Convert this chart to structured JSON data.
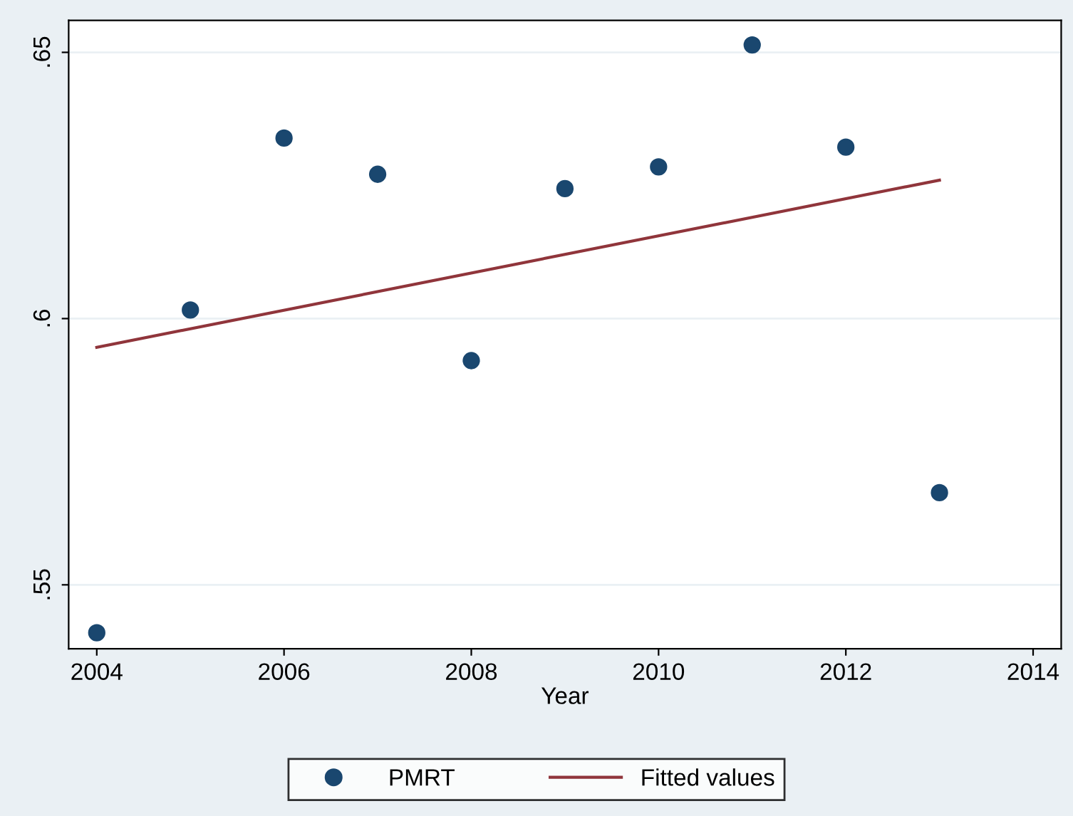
{
  "chart_data": {
    "type": "scatter",
    "xlabel": "Year",
    "series": [
      {
        "name": "PMRT",
        "color": "#1a476f",
        "marker": "circle",
        "x": [
          2004,
          2005,
          2006,
          2007,
          2008,
          2009,
          2010,
          2011,
          2012,
          2013
        ],
        "values": [
          0.541,
          0.6016,
          0.6339,
          0.6271,
          0.5921,
          0.6244,
          0.6285,
          0.6514,
          0.6322,
          0.5673
        ]
      },
      {
        "name": "Fitted values",
        "type": "line",
        "color": "#90353b",
        "line_style": "solid",
        "x": [
          2004,
          2013
        ],
        "values": [
          0.5946,
          0.626
        ]
      }
    ],
    "xlim": [
      2003.7,
      2014.3
    ],
    "ylim": [
      0.538,
      0.656
    ],
    "xticks": [
      2004,
      2006,
      2008,
      2010,
      2012,
      2014
    ],
    "yticks": [
      {
        "value": 0.55,
        "label": ".55"
      },
      {
        "value": 0.6,
        "label": ".6"
      },
      {
        "value": 0.65,
        "label": ".65"
      }
    ],
    "grid": "y",
    "legend": "bottom"
  }
}
